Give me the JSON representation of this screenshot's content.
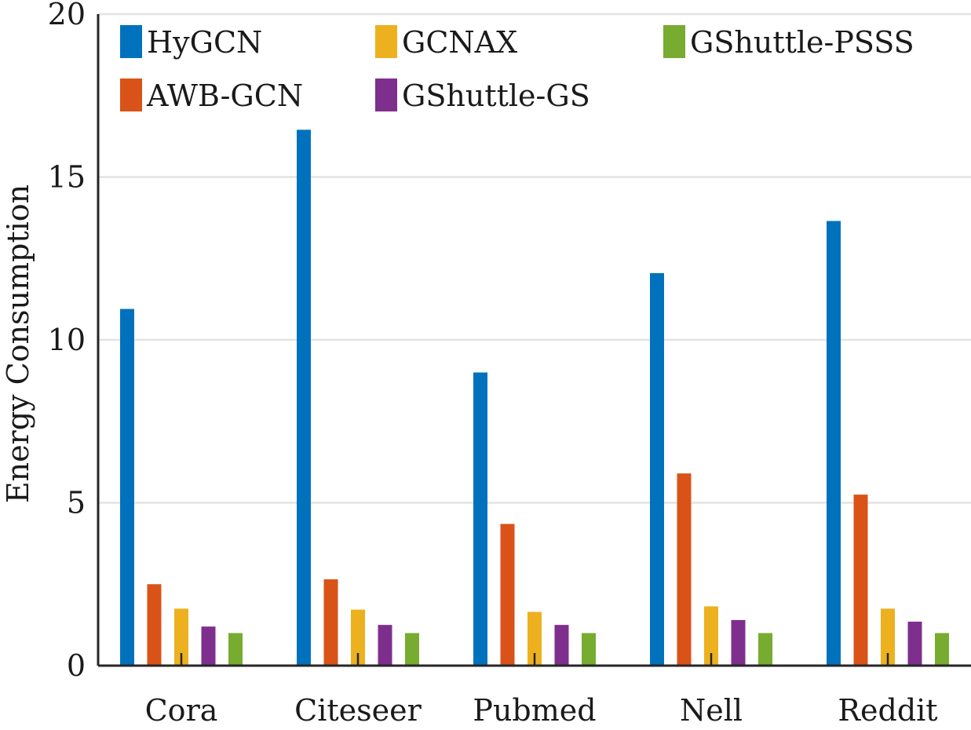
{
  "chart_data": {
    "type": "bar",
    "title": "",
    "xlabel": "",
    "ylabel": "Energy Consumption",
    "ylim": [
      0,
      20
    ],
    "yticks": [
      0,
      5,
      10,
      15,
      20
    ],
    "grid": "horizontal",
    "legend_position": "top",
    "categories": [
      "Cora",
      "Citeseer",
      "Pubmed",
      "Nell",
      "Reddit"
    ],
    "series": [
      {
        "name": "HyGCN",
        "color": "#0072BD",
        "values": [
          10.95,
          16.45,
          9.0,
          12.05,
          13.65
        ]
      },
      {
        "name": "AWB-GCN",
        "color": "#D95319",
        "values": [
          2.5,
          2.65,
          4.35,
          5.9,
          5.25
        ]
      },
      {
        "name": "GCNAX",
        "color": "#EDB120",
        "values": [
          1.75,
          1.72,
          1.65,
          1.82,
          1.75
        ]
      },
      {
        "name": "GShuttle-GS",
        "color": "#7E2F8E",
        "values": [
          1.2,
          1.25,
          1.25,
          1.4,
          1.35
        ]
      },
      {
        "name": "GShuttle-PSSS",
        "color": "#77AC30",
        "values": [
          1.0,
          1.0,
          1.0,
          1.0,
          1.0
        ]
      }
    ]
  }
}
